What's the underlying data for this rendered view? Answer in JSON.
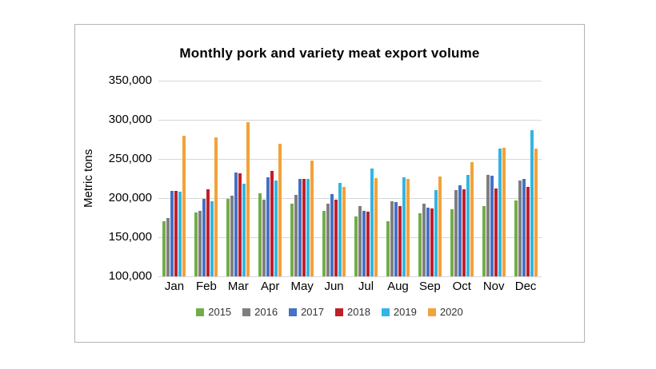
{
  "chart_data": {
    "type": "bar",
    "title": "Monthly pork and variety meat export volume",
    "ylabel": "Metric tons",
    "xlabel": "",
    "ylim": [
      100000,
      350000
    ],
    "ytick_step": 50000,
    "grid": true,
    "legend_position": "bottom",
    "categories": [
      "Jan",
      "Feb",
      "Mar",
      "Apr",
      "May",
      "Jun",
      "Jul",
      "Aug",
      "Sep",
      "Oct",
      "Nov",
      "Dec"
    ],
    "series": [
      {
        "name": "2015",
        "color": "#70AD47",
        "values": [
          170000,
          182000,
          199000,
          206000,
          193000,
          184000,
          177000,
          170000,
          181000,
          186000,
          190000,
          197000
        ]
      },
      {
        "name": "2016",
        "color": "#7F7F7F",
        "values": [
          175000,
          184000,
          203000,
          198000,
          204000,
          193000,
          190000,
          196000,
          193000,
          210000,
          230000,
          222000
        ]
      },
      {
        "name": "2017",
        "color": "#4472C4",
        "values": [
          209000,
          199000,
          233000,
          227000,
          225000,
          205000,
          184000,
          195000,
          188000,
          216000,
          229000,
          225000
        ]
      },
      {
        "name": "2018",
        "color": "#BF2026",
        "values": [
          209000,
          211000,
          232000,
          235000,
          224000,
          198000,
          183000,
          190000,
          187000,
          211000,
          212000,
          214000
        ]
      },
      {
        "name": "2019",
        "color": "#33B5E5",
        "values": [
          208000,
          196000,
          218000,
          222000,
          224000,
          219000,
          238000,
          227000,
          210000,
          230000,
          263000,
          287000
        ]
      },
      {
        "name": "2020",
        "color": "#F2A33A",
        "values": [
          280000,
          278000,
          297000,
          269000,
          248000,
          214000,
          226000,
          224000,
          228000,
          246000,
          264000,
          263000
        ]
      }
    ]
  }
}
